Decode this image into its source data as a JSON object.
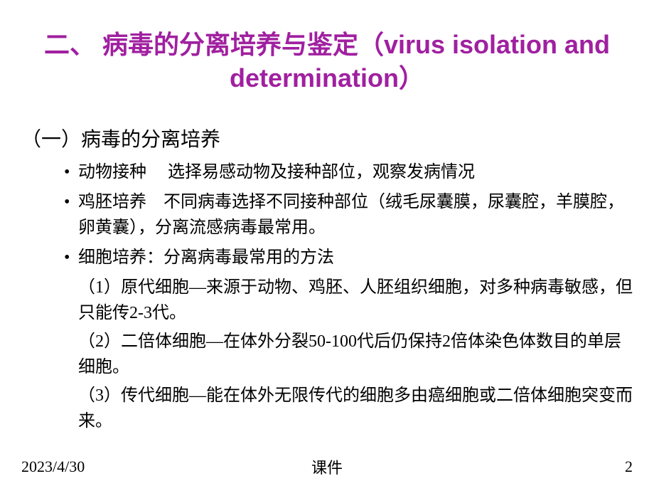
{
  "slide": {
    "title": "二、 病毒的分离培养与鉴定（virus isolation and determination）",
    "subtitle": "（一）病毒的分离培养",
    "bullets": [
      "动物接种　 选择易感动物及接种部位，观察发病情况",
      "鸡胚培养　不同病毒选择不同接种部位（绒毛尿囊膜，尿囊腔，羊膜腔，卵黄囊），分离流感病毒最常用。",
      "细胞培养：分离病毒最常用的方法"
    ],
    "subitems": [
      "（1）原代细胞—来源于动物、鸡胚、人胚组织细胞，对多种病毒敏感，但只能传2-3代。",
      "（2）二倍体细胞—在体外分裂50-100代后仍保持2倍体染色体数目的单层细胞。",
      "（3）传代细胞—能在体外无限传代的细胞多由癌细胞或二倍体细胞突变而来。"
    ]
  },
  "footer": {
    "date": "2023/4/30",
    "center": "课件",
    "page": "2"
  },
  "colors": {
    "title_color": "#a020a0",
    "text_color": "#000000",
    "background": "#ffffff"
  },
  "typography": {
    "title_fontsize": 36,
    "subtitle_fontsize": 28,
    "body_fontsize": 24,
    "footer_fontsize": 22
  }
}
